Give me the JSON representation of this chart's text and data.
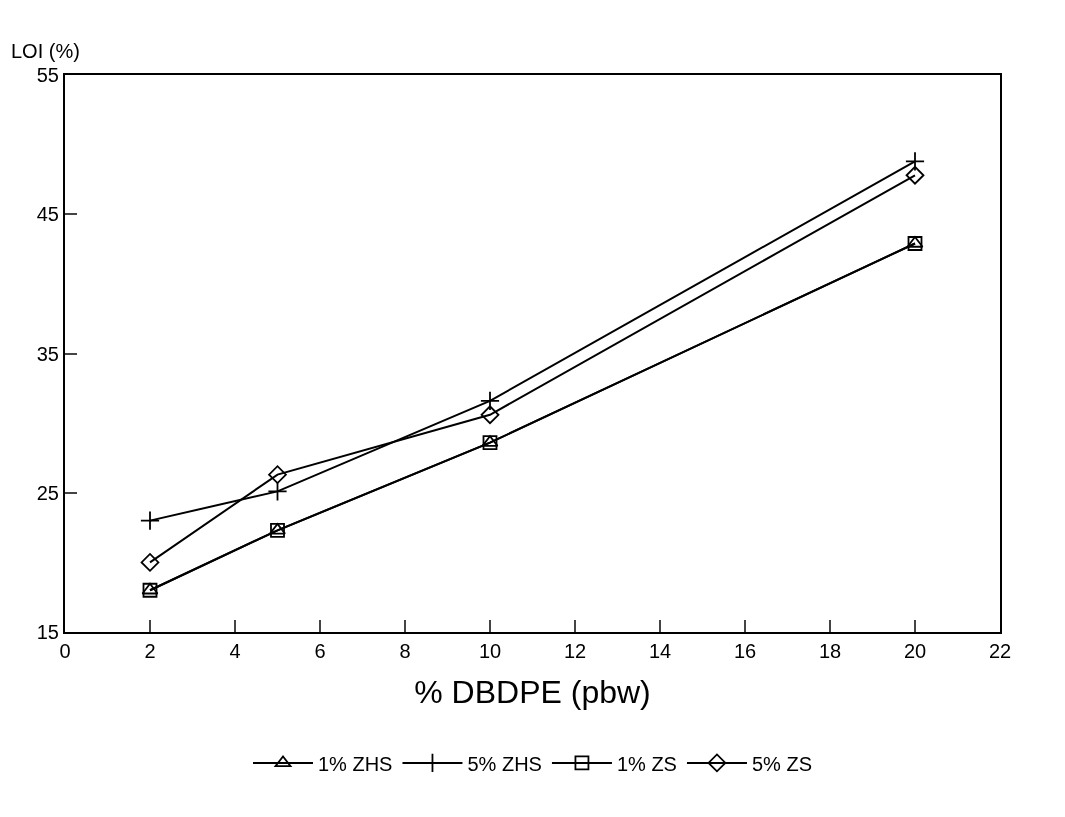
{
  "chart_data": {
    "type": "line",
    "xlabel": "% DBDPE (pbw)",
    "ylabel": "LOI (%)",
    "x": [
      2,
      5,
      10,
      20
    ],
    "xlim": [
      0,
      22
    ],
    "xticks": [
      0,
      2,
      4,
      6,
      8,
      10,
      12,
      14,
      16,
      18,
      20,
      22
    ],
    "ylim": [
      15,
      55
    ],
    "yticks": [
      15,
      25,
      35,
      45,
      55
    ],
    "grid": false,
    "legend": "bottom",
    "line_style": "solid",
    "series": [
      {
        "name": "1% ZHS",
        "color": "#000000",
        "marker": "triangle",
        "values": [
          18.0,
          22.3,
          28.6,
          42.9
        ]
      },
      {
        "name": "5% ZHS",
        "color": "#000000",
        "marker": "cross",
        "values": [
          23.0,
          25.1,
          31.6,
          48.8
        ]
      },
      {
        "name": "1% ZS",
        "color": "#000000",
        "marker": "square",
        "values": [
          18.0,
          22.3,
          28.6,
          42.9
        ]
      },
      {
        "name": "5% ZS",
        "color": "#000000",
        "marker": "diamond",
        "values": [
          20.0,
          26.3,
          30.6,
          47.8
        ]
      }
    ]
  }
}
